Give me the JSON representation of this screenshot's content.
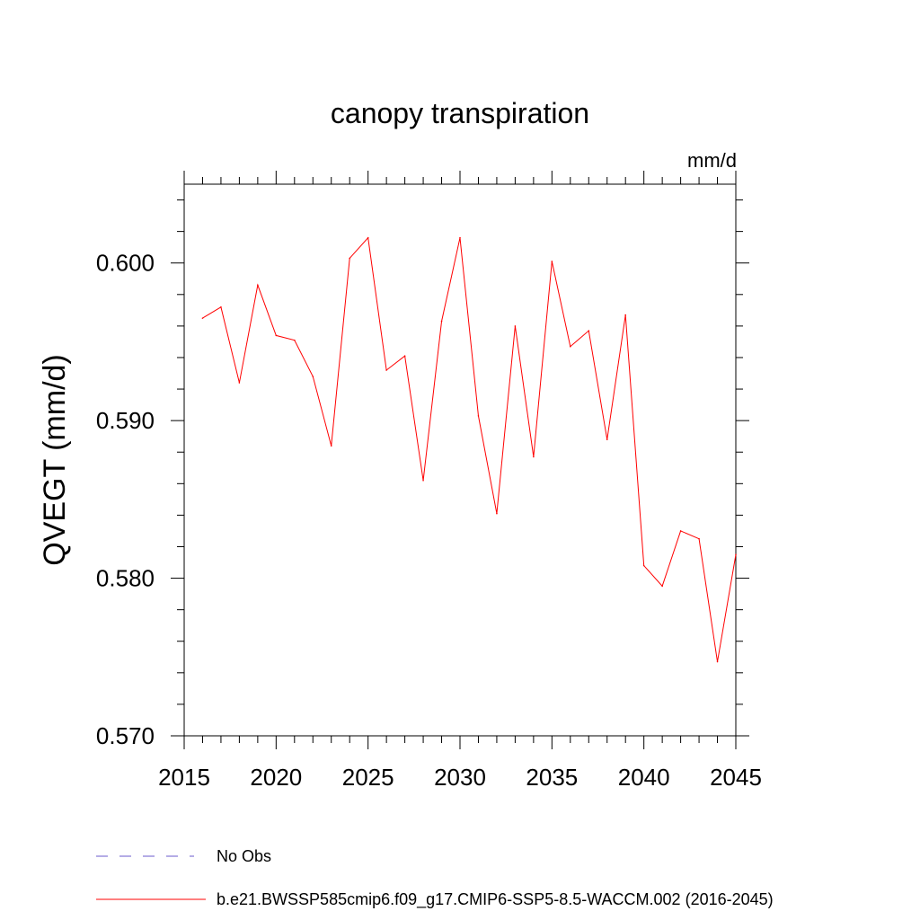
{
  "chart_data": {
    "type": "line",
    "title": "canopy transpiration",
    "units_label": "mm/d",
    "ylabel": "QVEGT  (mm/d)",
    "xlabel": "",
    "xlim": [
      2015,
      2045
    ],
    "ylim": [
      0.57,
      0.605
    ],
    "x_ticks": [
      2015,
      2020,
      2025,
      2030,
      2035,
      2040,
      2045
    ],
    "x_tick_labels": [
      "2015",
      "2020",
      "2025",
      "2030",
      "2035",
      "2040",
      "2045"
    ],
    "y_ticks": [
      0.57,
      0.58,
      0.59,
      0.6
    ],
    "y_tick_labels": [
      "0.570",
      "0.580",
      "0.590",
      "0.600"
    ],
    "y_minor_step": 0.002,
    "x_minor_step": 1,
    "grid": false,
    "legend_position": "bottom",
    "series": [
      {
        "name": "b.e21.BWSSP585cmip6.f09_g17.CMIP6-SSP5-8.5-WACCM.002 (2016-2045)",
        "color": "#ff0000",
        "x": [
          2016,
          2017,
          2018,
          2019,
          2020,
          2021,
          2022,
          2023,
          2024,
          2025,
          2026,
          2027,
          2028,
          2029,
          2030,
          2031,
          2032,
          2033,
          2034,
          2035,
          2036,
          2037,
          2038,
          2039,
          2040,
          2041,
          2042,
          2043,
          2044,
          2045
        ],
        "values": [
          0.5965,
          0.5972,
          0.5924,
          0.5986,
          0.5954,
          0.5951,
          0.5928,
          0.5884,
          0.6003,
          0.6016,
          0.5932,
          0.5941,
          0.5862,
          0.5963,
          0.6016,
          0.5903,
          0.5841,
          0.596,
          0.5877,
          0.6001,
          0.5947,
          0.5957,
          0.5888,
          0.5967,
          0.5808,
          0.5795,
          0.583,
          0.5825,
          0.5747,
          0.5815
        ]
      }
    ],
    "legend": [
      {
        "label": "No Obs",
        "color": "#6a5acd",
        "style": "dashed"
      },
      {
        "label": "b.e21.BWSSP585cmip6.f09_g17.CMIP6-SSP5-8.5-WACCM.002 (2016-2045)",
        "color": "#ff0000",
        "style": "solid"
      }
    ]
  }
}
